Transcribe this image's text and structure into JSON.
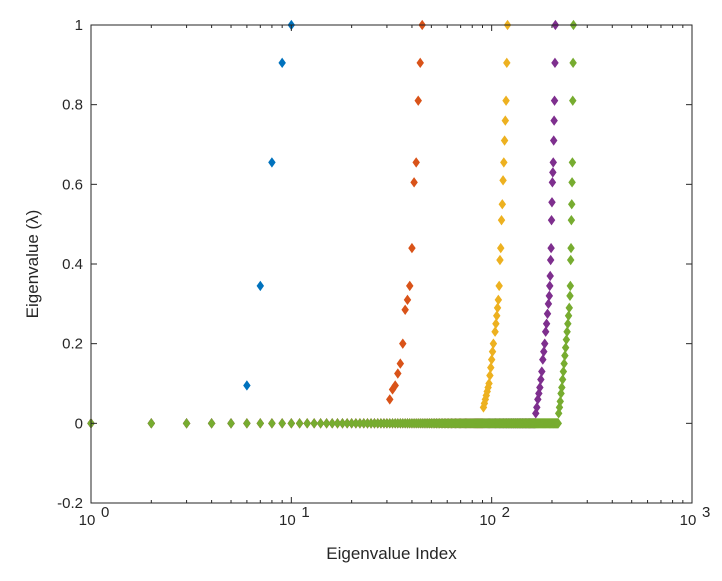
{
  "chart_data": {
    "type": "scatter",
    "marker": "diamond",
    "xlabel": "Eigenvalue Index",
    "ylabel": "Eigenvalue (λ)",
    "xscale": "log",
    "xlim": [
      1,
      1000
    ],
    "ylim": [
      -0.2,
      1
    ],
    "x_ticks": [
      {
        "value": 1,
        "base": "10",
        "exp": "0"
      },
      {
        "value": 10,
        "base": "10",
        "exp": "1"
      },
      {
        "value": 100,
        "base": "10",
        "exp": "2"
      },
      {
        "value": 1000,
        "base": "10",
        "exp": "3"
      }
    ],
    "y_ticks": [
      {
        "value": -0.2,
        "label": "-0.2"
      },
      {
        "value": 0,
        "label": "0"
      },
      {
        "value": 0.2,
        "label": "0.2"
      },
      {
        "value": 0.4,
        "label": "0.4"
      },
      {
        "value": 0.6,
        "label": "0.6"
      },
      {
        "value": 0.8,
        "label": "0.8"
      },
      {
        "value": 1,
        "label": "1"
      }
    ],
    "grid": false,
    "legend": "none",
    "series": [
      {
        "color": "#0072BD",
        "zeros_to": 5,
        "points": [
          [
            6,
            0.095
          ],
          [
            7,
            0.345
          ],
          [
            8,
            0.655
          ],
          [
            9,
            0.905
          ],
          [
            10,
            1.0
          ]
        ]
      },
      {
        "color": "#D95319",
        "zeros_to": 30,
        "points": [
          [
            31,
            0.06
          ],
          [
            32,
            0.085
          ],
          [
            33,
            0.095
          ],
          [
            34,
            0.125
          ],
          [
            35,
            0.15
          ],
          [
            36,
            0.2
          ],
          [
            37,
            0.285
          ],
          [
            38,
            0.31
          ],
          [
            39,
            0.345
          ],
          [
            40,
            0.44
          ],
          [
            41,
            0.605
          ],
          [
            42,
            0.655
          ],
          [
            43,
            0.81
          ],
          [
            44,
            0.905
          ],
          [
            45,
            1.0
          ]
        ]
      },
      {
        "color": "#EDB120",
        "zeros_to": 90,
        "points": [
          [
            91,
            0.04
          ],
          [
            92,
            0.05
          ],
          [
            93,
            0.06
          ],
          [
            94,
            0.07
          ],
          [
            95,
            0.08
          ],
          [
            96,
            0.09
          ],
          [
            97,
            0.1
          ],
          [
            98,
            0.12
          ],
          [
            99,
            0.14
          ],
          [
            100,
            0.16
          ],
          [
            101,
            0.18
          ],
          [
            102,
            0.2
          ],
          [
            104,
            0.23
          ],
          [
            105,
            0.25
          ],
          [
            106,
            0.27
          ],
          [
            107,
            0.29
          ],
          [
            108,
            0.31
          ],
          [
            109,
            0.345
          ],
          [
            110,
            0.41
          ],
          [
            111,
            0.44
          ],
          [
            112,
            0.51
          ],
          [
            113,
            0.55
          ],
          [
            114,
            0.61
          ],
          [
            115,
            0.655
          ],
          [
            116,
            0.71
          ],
          [
            117,
            0.76
          ],
          [
            118,
            0.81
          ],
          [
            119,
            0.905
          ],
          [
            120,
            1.0
          ]
        ]
      },
      {
        "color": "#7E2F8E",
        "zeros_to": 165,
        "points": [
          [
            166,
            0.025
          ],
          [
            168,
            0.04
          ],
          [
            170,
            0.06
          ],
          [
            172,
            0.075
          ],
          [
            174,
            0.09
          ],
          [
            176,
            0.11
          ],
          [
            178,
            0.13
          ],
          [
            180,
            0.16
          ],
          [
            182,
            0.18
          ],
          [
            184,
            0.2
          ],
          [
            186,
            0.23
          ],
          [
            188,
            0.25
          ],
          [
            190,
            0.275
          ],
          [
            192,
            0.3
          ],
          [
            194,
            0.32
          ],
          [
            195,
            0.345
          ],
          [
            196,
            0.37
          ],
          [
            197,
            0.41
          ],
          [
            198,
            0.44
          ],
          [
            199,
            0.51
          ],
          [
            200,
            0.555
          ],
          [
            201,
            0.605
          ],
          [
            202,
            0.63
          ],
          [
            203,
            0.655
          ],
          [
            204,
            0.71
          ],
          [
            205,
            0.76
          ],
          [
            206,
            0.81
          ],
          [
            207,
            0.905
          ],
          [
            208,
            1.0
          ]
        ]
      },
      {
        "color": "#77AC30",
        "zeros_to": 215,
        "points": [
          [
            216,
            0.025
          ],
          [
            218,
            0.04
          ],
          [
            220,
            0.055
          ],
          [
            222,
            0.075
          ],
          [
            224,
            0.09
          ],
          [
            226,
            0.11
          ],
          [
            228,
            0.13
          ],
          [
            230,
            0.15
          ],
          [
            232,
            0.17
          ],
          [
            234,
            0.19
          ],
          [
            236,
            0.21
          ],
          [
            238,
            0.23
          ],
          [
            240,
            0.25
          ],
          [
            242,
            0.27
          ],
          [
            244,
            0.29
          ],
          [
            246,
            0.32
          ],
          [
            247,
            0.345
          ],
          [
            248,
            0.41
          ],
          [
            249,
            0.44
          ],
          [
            250,
            0.51
          ],
          [
            251,
            0.55
          ],
          [
            252,
            0.605
          ],
          [
            253,
            0.655
          ],
          [
            254,
            0.81
          ],
          [
            255,
            0.905
          ],
          [
            256,
            1.0
          ]
        ]
      }
    ]
  }
}
